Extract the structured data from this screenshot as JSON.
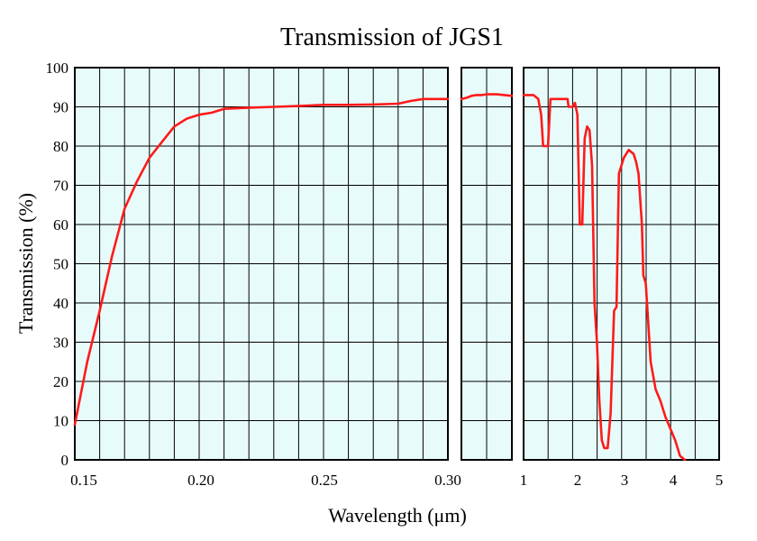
{
  "chart_data": {
    "type": "line",
    "title": "Transmission of JGS1",
    "xlabel": "Wavelength (μm)",
    "ylabel": "Transmission (%)",
    "ylim": [
      0,
      100
    ],
    "yticks": [
      "100",
      "90",
      "80",
      "70",
      "60",
      "50",
      "40",
      "30",
      "20",
      "10",
      "0"
    ],
    "grid": true,
    "colors": {
      "line": "#ff1a1a",
      "plot_background": "#e8fbfb",
      "grid": "#000000"
    },
    "segments": [
      {
        "xscale": "linear",
        "xlim": [
          0.15,
          0.3
        ],
        "xticks": [
          "0.15",
          "0.20",
          "0.25",
          "0.30"
        ],
        "points": [
          [
            0.15,
            9
          ],
          [
            0.155,
            25
          ],
          [
            0.16,
            38
          ],
          [
            0.165,
            52
          ],
          [
            0.17,
            64
          ],
          [
            0.175,
            71
          ],
          [
            0.18,
            77
          ],
          [
            0.185,
            81
          ],
          [
            0.19,
            85
          ],
          [
            0.195,
            87
          ],
          [
            0.2,
            88
          ],
          [
            0.205,
            88.5
          ],
          [
            0.21,
            89.5
          ],
          [
            0.22,
            89.8
          ],
          [
            0.23,
            90
          ],
          [
            0.24,
            90.2
          ],
          [
            0.25,
            90.5
          ],
          [
            0.26,
            90.5
          ],
          [
            0.27,
            90.6
          ],
          [
            0.28,
            90.8
          ],
          [
            0.285,
            91.5
          ],
          [
            0.29,
            92
          ],
          [
            0.3,
            92
          ]
        ]
      },
      {
        "xscale": "linear",
        "xlim": [
          0.3,
          0.4
        ],
        "xticks": [
          "0.30"
        ],
        "points": [
          [
            0.3,
            92
          ],
          [
            0.31,
            92.3
          ],
          [
            0.32,
            92.8
          ],
          [
            0.33,
            93
          ],
          [
            0.34,
            93
          ],
          [
            0.35,
            93.2
          ],
          [
            0.37,
            93.2
          ],
          [
            0.4,
            92.8
          ]
        ]
      },
      {
        "xscale": "linear",
        "xlim": [
          1,
          5
        ],
        "xticks": [
          "1",
          "2",
          "3",
          "4",
          "5"
        ],
        "points": [
          [
            1.0,
            93
          ],
          [
            1.2,
            93
          ],
          [
            1.3,
            92
          ],
          [
            1.36,
            88
          ],
          [
            1.4,
            80
          ],
          [
            1.5,
            80
          ],
          [
            1.55,
            92
          ],
          [
            1.9,
            92
          ],
          [
            1.92,
            90
          ],
          [
            2.0,
            90
          ],
          [
            2.05,
            91
          ],
          [
            2.1,
            88
          ],
          [
            2.15,
            60
          ],
          [
            2.2,
            60
          ],
          [
            2.25,
            82
          ],
          [
            2.3,
            85
          ],
          [
            2.35,
            84
          ],
          [
            2.4,
            75
          ],
          [
            2.45,
            40
          ],
          [
            2.5,
            30
          ],
          [
            2.55,
            15
          ],
          [
            2.6,
            5
          ],
          [
            2.65,
            3
          ],
          [
            2.72,
            3
          ],
          [
            2.78,
            12
          ],
          [
            2.85,
            38
          ],
          [
            2.9,
            39
          ],
          [
            2.95,
            73
          ],
          [
            3.05,
            77
          ],
          [
            3.15,
            79
          ],
          [
            3.25,
            78
          ],
          [
            3.3,
            76
          ],
          [
            3.35,
            73
          ],
          [
            3.42,
            60
          ],
          [
            3.45,
            47
          ],
          [
            3.5,
            45
          ],
          [
            3.55,
            35
          ],
          [
            3.6,
            25
          ],
          [
            3.7,
            18
          ],
          [
            3.8,
            15
          ],
          [
            3.9,
            11
          ],
          [
            4.0,
            8
          ],
          [
            4.1,
            5
          ],
          [
            4.2,
            1
          ],
          [
            4.3,
            0
          ]
        ]
      }
    ]
  }
}
